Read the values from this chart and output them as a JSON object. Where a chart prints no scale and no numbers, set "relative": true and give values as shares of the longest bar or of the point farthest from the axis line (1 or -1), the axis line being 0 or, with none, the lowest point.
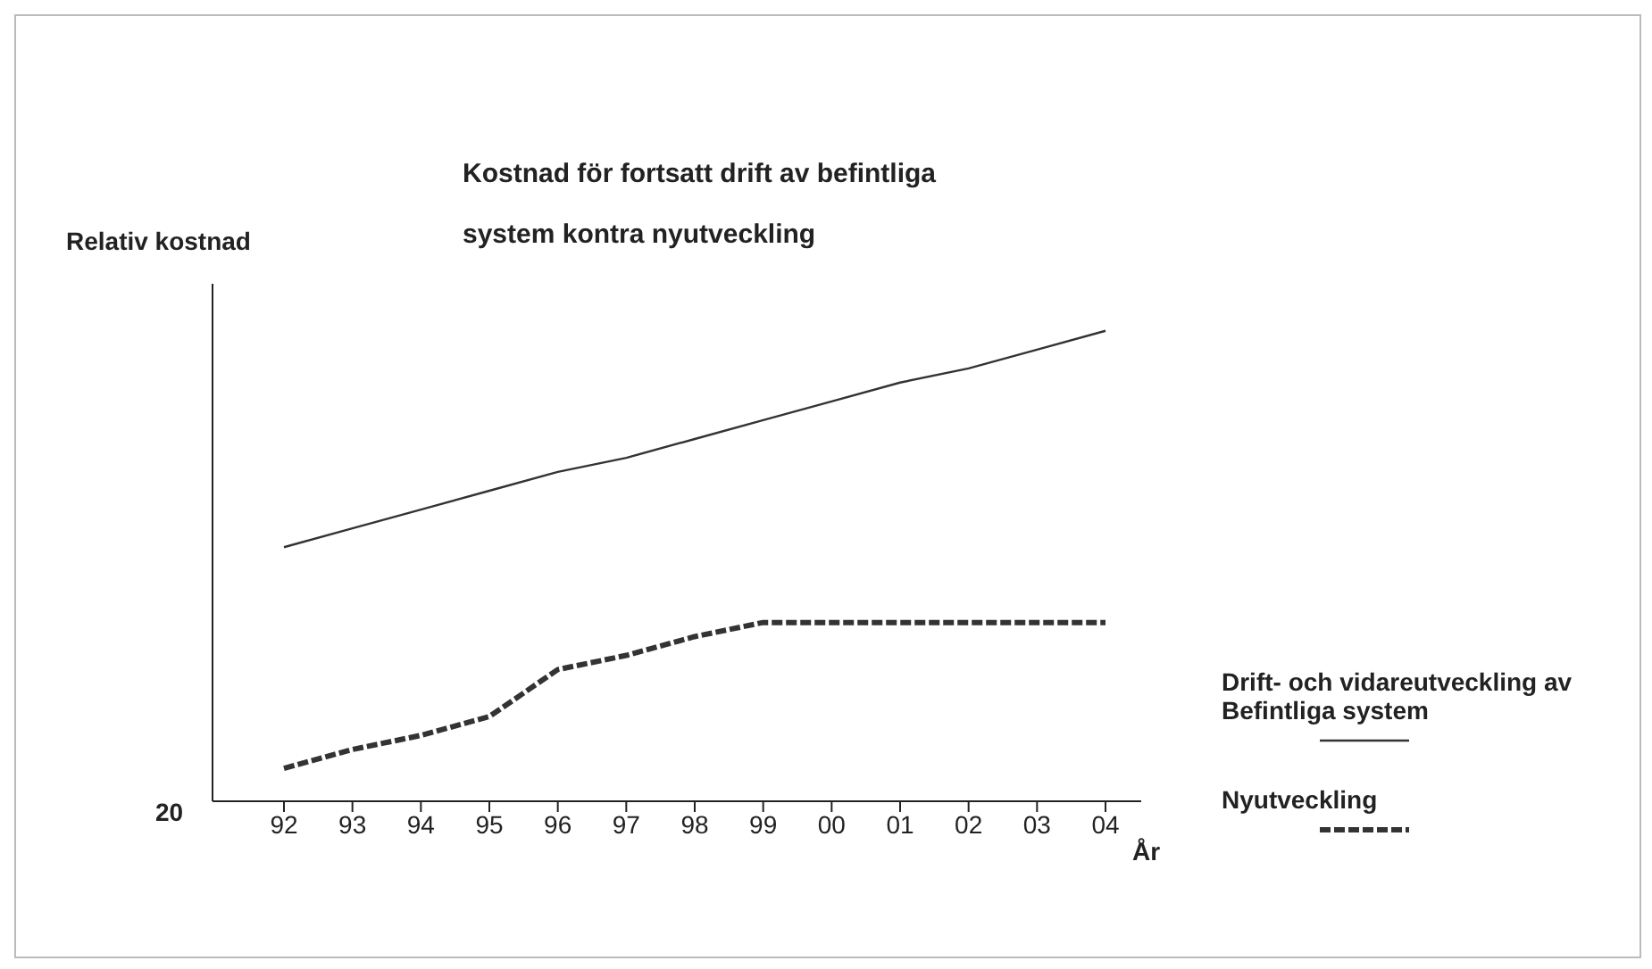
{
  "chart_data": {
    "type": "line",
    "title": "Kostnad för fortsatt drift av befintliga system kontra nyutveckling",
    "ylabel": "Relativ kostnad",
    "xlabel": "År",
    "relative": true,
    "legend": "right",
    "marker": "none",
    "annotations": [
      "20"
    ],
    "categories": [
      "92",
      "93",
      "94",
      "95",
      "96",
      "97",
      "98",
      "99",
      "00",
      "01",
      "02",
      "03",
      "04"
    ],
    "series": [
      {
        "name": "Drift- och vidareutveckling av Befintliga system",
        "color": "#333333",
        "line_style": "solid",
        "values": [
          0.54,
          0.58,
          0.62,
          0.66,
          0.7,
          0.73,
          0.77,
          0.81,
          0.85,
          0.89,
          0.92,
          0.96,
          1
        ]
      },
      {
        "name": "Nyutveckling",
        "color": "#333333",
        "line_style": "dashed",
        "values": [
          0.07,
          0.11,
          0.14,
          0.18,
          0.28,
          0.31,
          0.35,
          0.38,
          0.38,
          0.38,
          0.38,
          0.38,
          0.38
        ]
      }
    ]
  }
}
